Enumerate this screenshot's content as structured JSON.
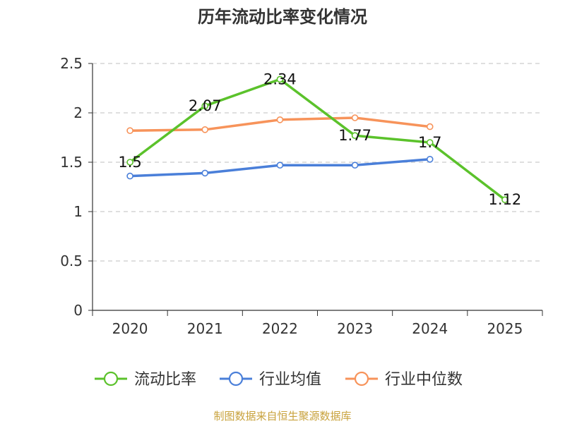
{
  "chart_data": {
    "type": "line",
    "title": "历年流动比率变化情况",
    "categories": [
      "2020",
      "2021",
      "2022",
      "2023",
      "2024",
      "2025"
    ],
    "ylim": [
      0,
      2.5
    ],
    "yticks": [
      "0",
      "0.5",
      "1",
      "1.5",
      "2",
      "2.5"
    ],
    "grid": true,
    "legend_position": "bottom",
    "series": [
      {
        "name": "流动比率",
        "color": "#5bc22b",
        "values": [
          1.5,
          2.07,
          2.34,
          1.77,
          1.7,
          1.12
        ],
        "labels": [
          "1.5",
          "2.07",
          "2.34",
          "1.77",
          "1.7",
          "1.12"
        ]
      },
      {
        "name": "行业均值",
        "color": "#4a7fd9",
        "values": [
          1.36,
          1.39,
          1.47,
          1.47,
          1.53,
          null
        ]
      },
      {
        "name": "行业中位数",
        "color": "#f7935a",
        "values": [
          1.82,
          1.83,
          1.93,
          1.95,
          1.86,
          null
        ]
      }
    ]
  },
  "source_text": "制图数据来自恒生聚源数据库"
}
